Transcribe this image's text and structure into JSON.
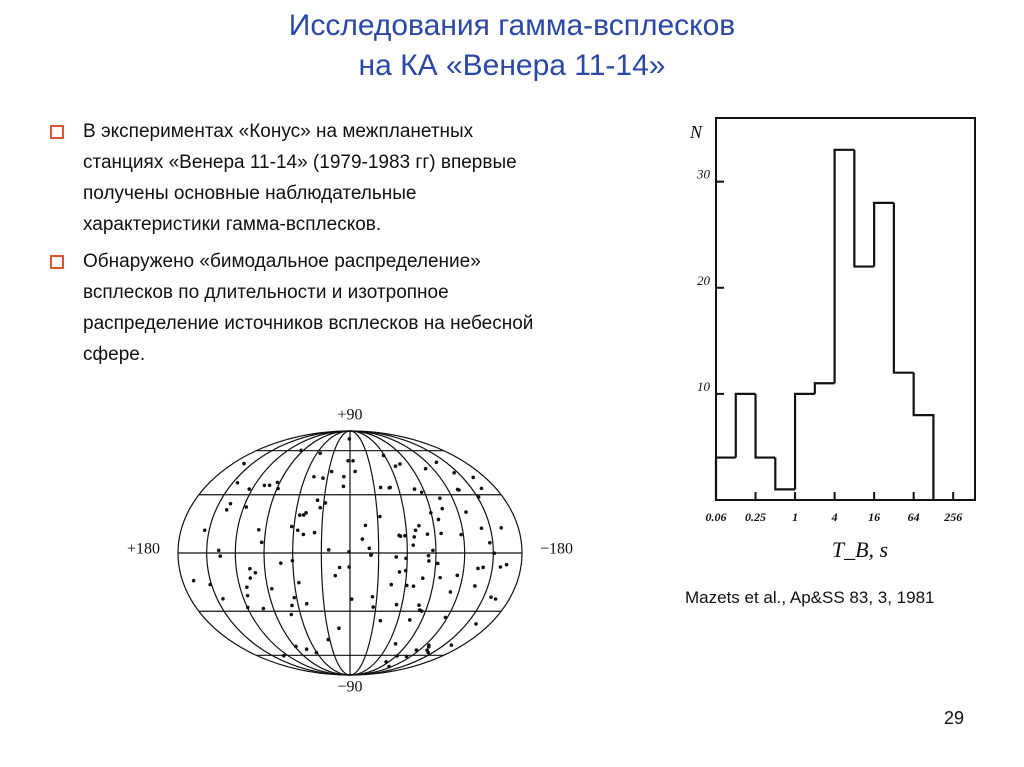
{
  "header": {
    "title": [
      "Исследования гамма-всплесков",
      "на КА «Венера 11-14»"
    ]
  },
  "bullets": [
    [
      "В экспериментах «Конус» на межпланетных",
      "станциях «Венера 11-14» (1979-1983 гг) впервые",
      "получены  основные  наблюдательные",
      "характеристики гамма-всплесков."
    ],
    [
      "Обнаружено «бимодальное распределение»",
      "всплесков  по длительности и  изотропное",
      "распределение источников всплесков на небесной",
      "сфере."
    ]
  ],
  "sky_map": {
    "labels": {
      "top": "+90",
      "bottom": "−90",
      "left": "+180",
      "right": "−180"
    }
  },
  "chart_data": {
    "type": "histogram",
    "x_label": "T_B, s",
    "y_label": "N",
    "bins": [
      0.0625,
      0.125,
      0.25,
      0.5,
      1,
      2,
      4,
      8,
      16,
      32,
      64,
      128
    ],
    "values": [
      4,
      10,
      4,
      1,
      10,
      11,
      33,
      22,
      28,
      12,
      8
    ],
    "color": "#111111",
    "log_x": true,
    "xlim": [
      0.0625,
      550
    ],
    "ylim": [
      0,
      36
    ],
    "xticks": [
      {
        "value": 0.0625,
        "label": "0.06"
      },
      0.25,
      1,
      4,
      16,
      64,
      256
    ],
    "yticks": [
      10,
      20,
      30
    ]
  },
  "caption": "Mazets et al., Ap&SS 83, 3, 1981",
  "page_number": "29"
}
